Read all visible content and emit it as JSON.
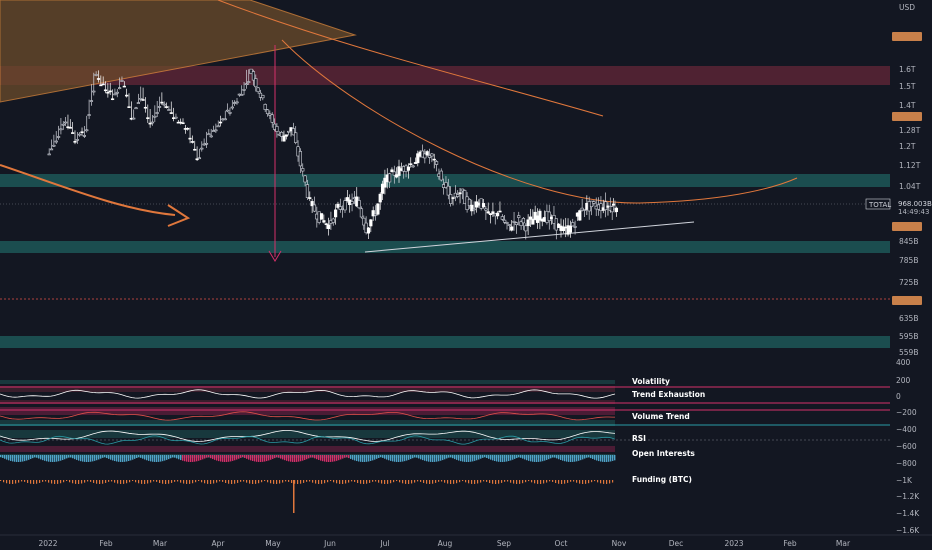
{
  "chart_data": {
    "type": "candlestick",
    "symbol": "TOTAL",
    "currency": "USD",
    "last_price": "968.003B",
    "countdown": "14:49:43",
    "price_axis": {
      "labels": [
        "1.6T",
        "1.5T",
        "1.4T",
        "1.28T",
        "1.2T",
        "1.12T",
        "1.04T",
        "845B",
        "785B",
        "725B",
        "635B",
        "595B",
        "559B"
      ],
      "values": [
        1600,
        1500,
        1400,
        1280,
        1200,
        1120,
        1040,
        845,
        785,
        725,
        635,
        595,
        559
      ]
    },
    "time_axis": [
      "2022",
      "Feb",
      "Mar",
      "Apr",
      "May",
      "Jun",
      "Jul",
      "Aug",
      "Sep",
      "Oct",
      "Nov",
      "Dec",
      "2023",
      "Feb",
      "Mar"
    ],
    "indicator_axis": [
      "400",
      "200",
      "0",
      "−200",
      "−400",
      "−600",
      "−800",
      "−1K",
      "−1.2K",
      "−1.4K",
      "−1.6K"
    ],
    "indicators": [
      "Volatility",
      "Trend Exhaustion",
      "Volume Trend",
      "RSI",
      "Open Interests",
      "Funding (BTC)"
    ],
    "price_series": {
      "x_days": [
        0,
        5,
        10,
        15,
        20,
        25,
        30,
        35,
        40,
        45,
        50,
        55,
        60,
        65,
        70,
        75,
        80,
        85,
        90,
        95,
        100,
        105,
        110,
        115,
        120,
        125,
        130,
        135,
        140,
        145,
        150,
        155,
        160,
        165,
        170,
        175,
        180,
        185,
        190,
        195,
        200,
        205,
        210,
        215,
        220,
        225,
        230,
        235,
        240,
        245,
        250,
        255,
        260,
        265,
        270,
        275,
        280,
        285,
        290,
        295,
        300,
        303
      ],
      "y_billions": [
        2100,
        1990,
        1890,
        2010,
        1960,
        1630,
        1690,
        1760,
        1660,
        1880,
        1740,
        1910,
        1790,
        1830,
        1910,
        1960,
        2110,
        1990,
        1930,
        1860,
        1790,
        1700,
        1540,
        1420,
        1310,
        1240,
        1290,
        1120,
        980,
        930,
        900,
        960,
        980,
        990,
        890,
        950,
        1060,
        1090,
        1110,
        1130,
        1170,
        1150,
        1060,
        990,
        1020,
        960,
        990,
        930,
        950,
        890,
        920,
        900,
        930,
        935,
        910,
        880,
        900,
        965,
        968,
        968,
        968,
        968
      ]
    }
  }
}
